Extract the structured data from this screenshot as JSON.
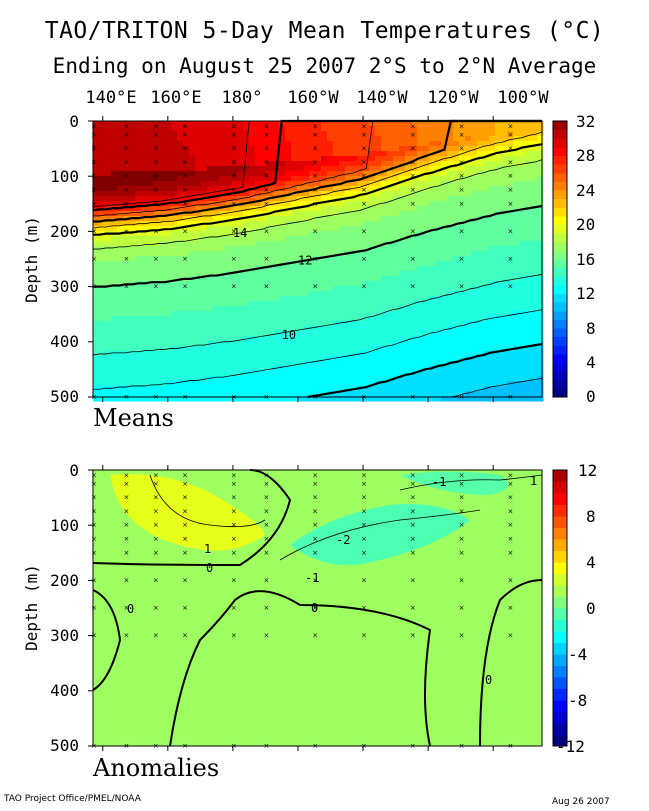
{
  "title": "TAO/TRITON 5-Day Mean Temperatures (°C)",
  "subtitle": "Ending on August 25 2007  2°S to 2°N Average",
  "footer_left": "TAO Project Office/PMEL/NOAA",
  "footer_right": "Aug 26 2007",
  "chart_data": [
    {
      "type": "heatmap",
      "panel_label": "Means",
      "x_tick_labels": [
        "140°E",
        "160°E",
        "180°",
        "160°W",
        "140°W",
        "120°W",
        "100°W"
      ],
      "x_ticks_deg_east": [
        140,
        160,
        180,
        200,
        220,
        240,
        260
      ],
      "xlim": [
        137,
        275
      ],
      "ylabel": "Depth (m)",
      "y_tick_labels": [
        "0",
        "100",
        "200",
        "300",
        "400",
        "500"
      ],
      "ylim": [
        0,
        500
      ],
      "colorbar_ticks": [
        "32",
        "28",
        "24",
        "20",
        "16",
        "12",
        "8",
        "4",
        "0"
      ],
      "color_range": [
        0,
        32
      ],
      "contour_labels": [
        "14",
        "12",
        "10"
      ],
      "mixed_layer_temp": [
        30.5,
        30.0,
        29.0,
        27.0,
        25.5,
        23.5,
        22.0
      ],
      "isotherm_20c_depth_m": [
        {
          "lon": 137,
          "depth": 175
        },
        {
          "lon": 160,
          "depth": 165
        },
        {
          "lon": 180,
          "depth": 150
        },
        {
          "lon": 200,
          "depth": 130
        },
        {
          "lon": 220,
          "depth": 110
        },
        {
          "lon": 240,
          "depth": 75
        },
        {
          "lon": 260,
          "depth": 45
        },
        {
          "lon": 275,
          "depth": 30
        }
      ]
    },
    {
      "type": "heatmap",
      "panel_label": "Anomalies",
      "x_tick_labels": [
        "140°E",
        "160°E",
        "180°",
        "160°W",
        "140°W",
        "120°W",
        "100°W"
      ],
      "ylabel": "Depth (m)",
      "y_tick_labels": [
        "0",
        "100",
        "200",
        "300",
        "400",
        "500"
      ],
      "ylim": [
        0,
        500
      ],
      "colorbar_ticks": [
        "12",
        "8",
        "4",
        "0",
        "-4",
        "-8",
        "-12"
      ],
      "color_range": [
        -12,
        12
      ],
      "contour_labels": [
        "1",
        "0",
        "-1",
        "-2",
        "-1",
        "0",
        "0",
        "0",
        "1"
      ]
    }
  ]
}
